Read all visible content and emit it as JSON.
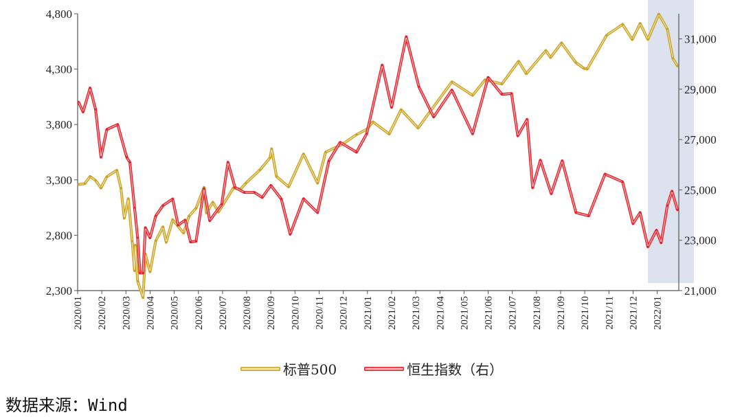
{
  "chart_data": {
    "type": "line",
    "title": "",
    "xlabel": "",
    "ylabel": "",
    "x_tick_labels": [
      "2020/01",
      "2020/02",
      "2020/03",
      "2020/04",
      "2020/05",
      "2020/06",
      "2020/07",
      "2020/08",
      "2020/09",
      "2020/10",
      "2020/11",
      "2020/12",
      "2021/01",
      "2021/02",
      "2021/03",
      "2021/04",
      "2021/05",
      "2021/06",
      "2021/07",
      "2021/08",
      "2021/09",
      "2021/10",
      "2021/11",
      "2021/12",
      "2022/01"
    ],
    "y_left": {
      "range": [
        2300,
        4800
      ],
      "ticks": [
        "2,300",
        "2,800",
        "3,300",
        "3,800",
        "4,300",
        "4,800"
      ]
    },
    "y_right": {
      "range": [
        21000,
        32000
      ],
      "ticks": [
        "21,000",
        "23,000",
        "25,000",
        "27,000",
        "29,000",
        "31,000"
      ]
    },
    "grid": false,
    "legend_position": "bottom",
    "highlight_region": {
      "start": "2021-12-20",
      "end": "2022-02-10",
      "color": "#dde3ee"
    },
    "series": [
      {
        "name": "标普500",
        "axis": "left",
        "color": "#C9A227",
        "points": [
          [
            "2020-01-02",
            3258
          ],
          [
            "2020-01-10",
            3265
          ],
          [
            "2020-01-17",
            3330
          ],
          [
            "2020-01-24",
            3295
          ],
          [
            "2020-01-31",
            3226
          ],
          [
            "2020-02-07",
            3328
          ],
          [
            "2020-02-19",
            3386
          ],
          [
            "2020-02-24",
            3225
          ],
          [
            "2020-02-28",
            2954
          ],
          [
            "2020-03-04",
            3130
          ],
          [
            "2020-03-09",
            2747
          ],
          [
            "2020-03-12",
            2480
          ],
          [
            "2020-03-13",
            2711
          ],
          [
            "2020-03-16",
            2386
          ],
          [
            "2020-03-23",
            2237
          ],
          [
            "2020-03-26",
            2630
          ],
          [
            "2020-04-01",
            2470
          ],
          [
            "2020-04-08",
            2750
          ],
          [
            "2020-04-17",
            2875
          ],
          [
            "2020-04-21",
            2736
          ],
          [
            "2020-04-29",
            2940
          ],
          [
            "2020-05-13",
            2820
          ],
          [
            "2020-05-20",
            2972
          ],
          [
            "2020-05-29",
            3044
          ],
          [
            "2020-06-08",
            3232
          ],
          [
            "2020-06-11",
            3002
          ],
          [
            "2020-06-19",
            3098
          ],
          [
            "2020-06-26",
            3009
          ],
          [
            "2020-07-15",
            3227
          ],
          [
            "2020-07-24",
            3215
          ],
          [
            "2020-07-31",
            3271
          ],
          [
            "2020-08-18",
            3390
          ],
          [
            "2020-08-31",
            3500
          ],
          [
            "2020-09-02",
            3580
          ],
          [
            "2020-09-08",
            3331
          ],
          [
            "2020-09-23",
            3237
          ],
          [
            "2020-10-12",
            3534
          ],
          [
            "2020-10-30",
            3270
          ],
          [
            "2020-11-09",
            3550
          ],
          [
            "2020-11-30",
            3622
          ],
          [
            "2020-12-18",
            3709
          ],
          [
            "2020-12-31",
            3756
          ],
          [
            "2021-01-08",
            3824
          ],
          [
            "2021-01-29",
            3714
          ],
          [
            "2021-02-12",
            3934
          ],
          [
            "2021-03-04",
            3768
          ],
          [
            "2021-03-19",
            3913
          ],
          [
            "2021-04-16",
            4185
          ],
          [
            "2021-05-12",
            4063
          ],
          [
            "2021-05-28",
            4204
          ],
          [
            "2021-06-18",
            4166
          ],
          [
            "2021-07-09",
            4370
          ],
          [
            "2021-07-19",
            4258
          ],
          [
            "2021-08-13",
            4468
          ],
          [
            "2021-08-19",
            4405
          ],
          [
            "2021-09-02",
            4537
          ],
          [
            "2021-09-20",
            4358
          ],
          [
            "2021-09-30",
            4307
          ],
          [
            "2021-10-04",
            4300
          ],
          [
            "2021-10-29",
            4605
          ],
          [
            "2021-11-18",
            4704
          ],
          [
            "2021-11-30",
            4567
          ],
          [
            "2021-12-10",
            4712
          ],
          [
            "2021-12-20",
            4568
          ],
          [
            "2022-01-03",
            4796
          ],
          [
            "2022-01-14",
            4662
          ],
          [
            "2022-01-21",
            4398
          ],
          [
            "2022-01-27",
            4326
          ]
        ]
      },
      {
        "name": "恒生指数（右）",
        "axis": "right",
        "color": "#E8232B",
        "points": [
          [
            "2020-01-02",
            28500
          ],
          [
            "2020-01-08",
            28100
          ],
          [
            "2020-01-17",
            29050
          ],
          [
            "2020-01-24",
            28200
          ],
          [
            "2020-01-31",
            26300
          ],
          [
            "2020-02-07",
            27400
          ],
          [
            "2020-02-20",
            27600
          ],
          [
            "2020-03-02",
            26300
          ],
          [
            "2020-03-06",
            26100
          ],
          [
            "2020-03-12",
            24300
          ],
          [
            "2020-03-16",
            23100
          ],
          [
            "2020-03-19",
            21700
          ],
          [
            "2020-03-23",
            21700
          ],
          [
            "2020-03-26",
            23500
          ],
          [
            "2020-04-01",
            23100
          ],
          [
            "2020-04-08",
            23970
          ],
          [
            "2020-04-17",
            24380
          ],
          [
            "2020-04-29",
            24640
          ],
          [
            "2020-05-06",
            23600
          ],
          [
            "2020-05-15",
            23800
          ],
          [
            "2020-05-22",
            22930
          ],
          [
            "2020-05-29",
            22960
          ],
          [
            "2020-06-08",
            25050
          ],
          [
            "2020-06-15",
            23780
          ],
          [
            "2020-06-30",
            24430
          ],
          [
            "2020-07-08",
            26100
          ],
          [
            "2020-07-17",
            25100
          ],
          [
            "2020-07-29",
            24900
          ],
          [
            "2020-08-11",
            24900
          ],
          [
            "2020-08-21",
            24700
          ],
          [
            "2020-09-01",
            25180
          ],
          [
            "2020-09-14",
            24640
          ],
          [
            "2020-09-25",
            23240
          ],
          [
            "2020-10-12",
            24650
          ],
          [
            "2020-10-30",
            24100
          ],
          [
            "2020-11-13",
            26150
          ],
          [
            "2020-11-27",
            26890
          ],
          [
            "2020-12-18",
            26500
          ],
          [
            "2020-12-31",
            27230
          ],
          [
            "2021-01-20",
            29960
          ],
          [
            "2021-02-01",
            28280
          ],
          [
            "2021-02-18",
            31085
          ],
          [
            "2021-03-05",
            29100
          ],
          [
            "2021-03-24",
            27900
          ],
          [
            "2021-04-16",
            28970
          ],
          [
            "2021-05-12",
            27230
          ],
          [
            "2021-06-01",
            29470
          ],
          [
            "2021-06-18",
            28800
          ],
          [
            "2021-06-30",
            28830
          ],
          [
            "2021-07-08",
            27150
          ],
          [
            "2021-07-20",
            27800
          ],
          [
            "2021-07-27",
            25090
          ],
          [
            "2021-08-06",
            26180
          ],
          [
            "2021-08-20",
            24850
          ],
          [
            "2021-09-03",
            26160
          ],
          [
            "2021-09-20",
            24100
          ],
          [
            "2021-10-06",
            23970
          ],
          [
            "2021-10-27",
            25630
          ],
          [
            "2021-11-18",
            25320
          ],
          [
            "2021-12-01",
            23660
          ],
          [
            "2021-12-10",
            24100
          ],
          [
            "2021-12-20",
            22740
          ],
          [
            "2021-12-31",
            23400
          ],
          [
            "2022-01-06",
            22900
          ],
          [
            "2022-01-14",
            24380
          ],
          [
            "2022-01-20",
            24950
          ],
          [
            "2022-01-27",
            24200
          ]
        ]
      }
    ]
  },
  "source": "数据来源：Wind"
}
